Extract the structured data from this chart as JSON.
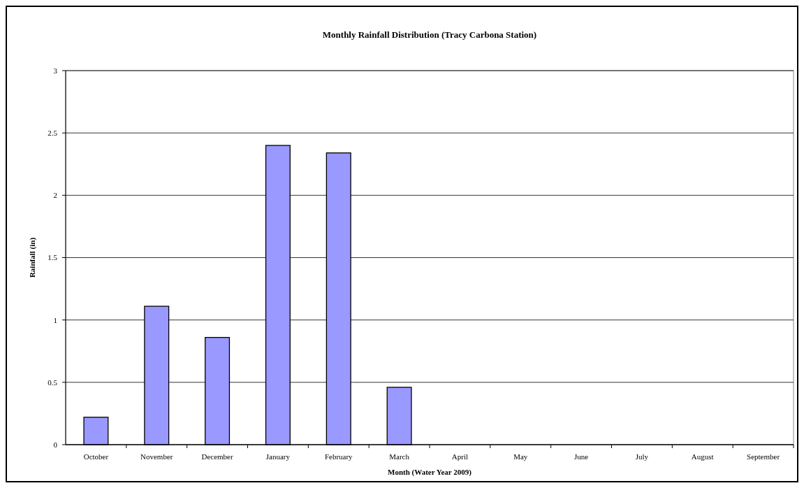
{
  "chart_data": {
    "type": "bar",
    "title": "Monthly Rainfall Distribution (Tracy Carbona Station)",
    "xlabel": "Month (Water Year 2009)",
    "ylabel": "Rainfall (in)",
    "categories": [
      "October",
      "November",
      "December",
      "January",
      "February",
      "March",
      "April",
      "May",
      "June",
      "July",
      "August",
      "September"
    ],
    "values": [
      0.22,
      1.11,
      0.86,
      2.4,
      2.34,
      0.46,
      0,
      0,
      0,
      0,
      0,
      0
    ],
    "color": "#9999ff",
    "ylim": [
      0,
      3
    ],
    "yticks": [
      0,
      0.5,
      1,
      1.5,
      2,
      2.5,
      3
    ],
    "grid": "y"
  }
}
